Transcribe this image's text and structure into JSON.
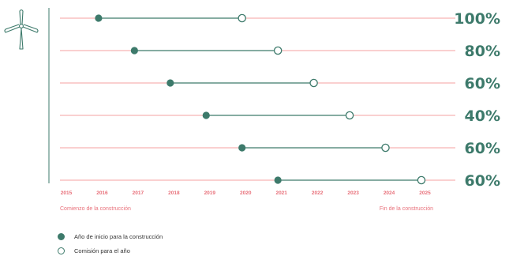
{
  "chart_data": {
    "type": "dumbbell",
    "x_axis": {
      "ticks": [
        "2015",
        "2016",
        "2017",
        "2018",
        "2019",
        "2020",
        "2021",
        "2022",
        "2023",
        "2024",
        "2025"
      ],
      "range": [
        2015,
        2025.8
      ],
      "left_label": "Comienzo de la construcción",
      "right_label": "Fin de la construcción"
    },
    "rows": [
      {
        "start": 2015.9,
        "end": 2019.9,
        "label": "100%"
      },
      {
        "start": 2016.9,
        "end": 2020.9,
        "label": "80%"
      },
      {
        "start": 2017.9,
        "end": 2021.9,
        "label": "60%"
      },
      {
        "start": 2018.9,
        "end": 2022.9,
        "label": "40%"
      },
      {
        "start": 2019.9,
        "end": 2023.9,
        "label": "60%"
      },
      {
        "start": 2020.9,
        "end": 2024.9,
        "label": "60%"
      }
    ],
    "legend": [
      {
        "label": "Año de inicio para la construcción",
        "marker": "filled"
      },
      {
        "label": "Comisión para el año",
        "marker": "open"
      }
    ],
    "colors": {
      "accent": "#3d7a6b",
      "gridline": "#f4a0a0",
      "axis_text": "#e8707a",
      "icon": "#3d7a6b"
    }
  },
  "icon": "wind-turbine-icon"
}
